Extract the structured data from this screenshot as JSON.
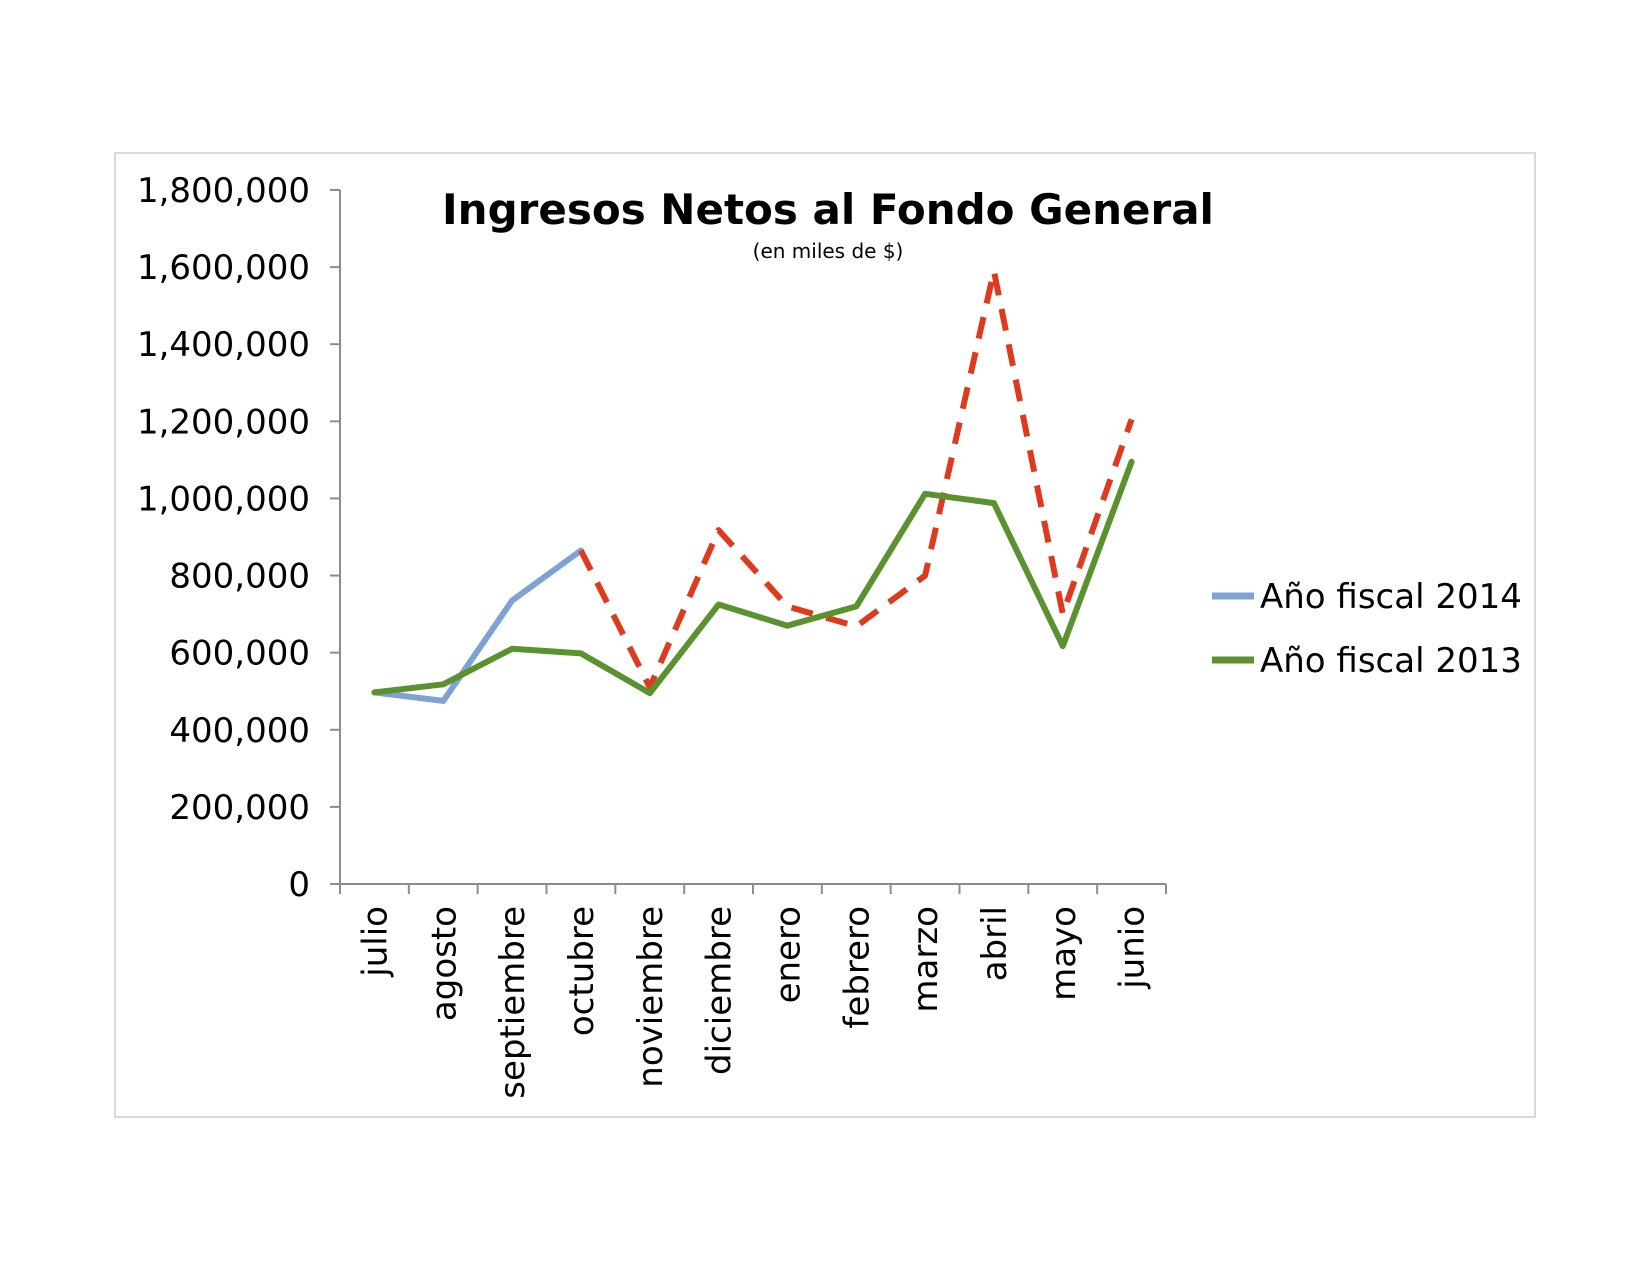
{
  "chart_data": {
    "type": "line",
    "title": "Ingresos Netos al Fondo General",
    "subtitle": "(en miles de $)",
    "xlabel": "",
    "ylabel": "",
    "categories": [
      "julio",
      "agosto",
      "septiembre",
      "octubre",
      "noviembre",
      "diciembre",
      "enero",
      "febrero",
      "marzo",
      "abril",
      "mayo",
      "junio"
    ],
    "ylim": [
      0,
      1800000
    ],
    "yticks": [
      0,
      200000,
      400000,
      600000,
      800000,
      1000000,
      1200000,
      1400000,
      1600000,
      1800000
    ],
    "ytick_labels": [
      "0",
      "200,000",
      "400,000",
      "600,000",
      "800,000",
      "1,000,000",
      "1,200,000",
      "1,400,000",
      "1,600,000",
      "1,800,000"
    ],
    "grid": false,
    "legend_position": "right",
    "series": [
      {
        "name": "Año fiscal 2014",
        "color": "#7fa2d4",
        "style": "solid",
        "values": [
          497000,
          475000,
          735000,
          865000,
          null,
          null,
          null,
          null,
          null,
          null,
          null,
          null
        ]
      },
      {
        "name": "",
        "color": "#e03a1e",
        "style": "dashed",
        "values": [
          null,
          null,
          null,
          865000,
          510000,
          918000,
          720000,
          668000,
          800000,
          1590000,
          700000,
          1205000
        ]
      },
      {
        "name": "Año fiscal 2013",
        "color": "#5a9230",
        "style": "solid",
        "values": [
          497000,
          518000,
          610000,
          598000,
          495000,
          725000,
          670000,
          720000,
          1012000,
          988000,
          617000,
          1095000
        ]
      }
    ]
  }
}
